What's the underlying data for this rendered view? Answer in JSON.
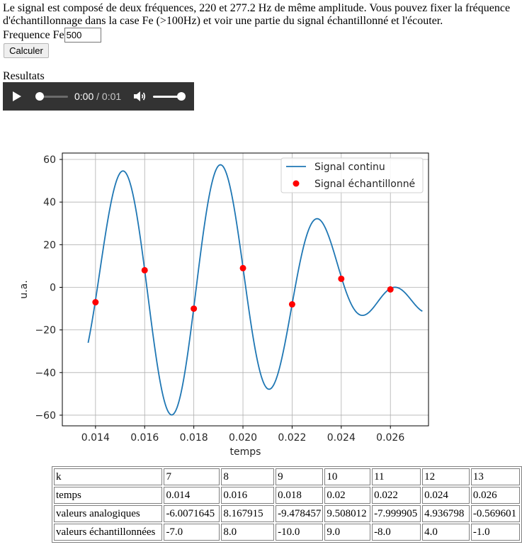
{
  "intro": {
    "text": "Le signal est composé de deux fréquences, 220 et 277.2 Hz de même amplitude. Vous pouvez fixer la fréquence d'échantillonnage dans la case Fe (>100Hz) et voir une partie du signal échantillonné et l'écouter."
  },
  "form": {
    "fe_label": "Frequence Fe",
    "fe_value": "500",
    "calc_label": "Calculer"
  },
  "results": {
    "label": "Resultats"
  },
  "audio": {
    "current_time": "0:00",
    "separator": " / ",
    "duration": "0:01",
    "progress": 0.0,
    "volume": 1.0
  },
  "chart_data": {
    "type": "line",
    "xlabel": "temps",
    "ylabel": "u.a.",
    "xlim": [
      0.01265,
      0.02755
    ],
    "ylim": [
      -65,
      63
    ],
    "xticks": [
      "0.014",
      "0.016",
      "0.018",
      "0.020",
      "0.022",
      "0.024",
      "0.026"
    ],
    "yticks": [
      "60",
      "40",
      "20",
      "0",
      "−20",
      "−40",
      "−60"
    ],
    "xtick_values": [
      0.014,
      0.016,
      0.018,
      0.02,
      0.022,
      0.024,
      0.026
    ],
    "ytick_values": [
      60,
      40,
      20,
      0,
      -20,
      -40,
      -60
    ],
    "grid": true,
    "legend_placement": "upper right",
    "series": [
      {
        "name": "Signal continu",
        "kind": "line",
        "color": "#1f77b4",
        "function": "30*sin(2*pi*220*t)+30*sin(2*pi*277.2*t)",
        "x_range": [
          0.0137,
          0.0273
        ]
      },
      {
        "name": "Signal échantillonné",
        "kind": "scatter",
        "color": "#ff0000",
        "x": [
          0.014,
          0.016,
          0.018,
          0.02,
          0.022,
          0.024,
          0.026
        ],
        "y": [
          -7.0,
          8.0,
          -10.0,
          9.0,
          -8.0,
          4.0,
          -1.0
        ]
      }
    ]
  },
  "table": {
    "rows": [
      {
        "header": "k",
        "cells": [
          "7",
          "8",
          "9",
          "10",
          "11",
          "12",
          "13"
        ]
      },
      {
        "header": "temps",
        "cells": [
          "0.014",
          "0.016",
          "0.018",
          "0.02",
          "0.022",
          "0.024",
          "0.026"
        ]
      },
      {
        "header": "valeurs analogiques",
        "cells": [
          "-6.0071645",
          "8.167915",
          "-9.478457",
          "9.508012",
          "-7.999905",
          "4.936798",
          "-0.569601"
        ]
      },
      {
        "header": "valeurs échantillonnées",
        "cells": [
          "-7.0",
          "8.0",
          "-10.0",
          "9.0",
          "-8.0",
          "4.0",
          "-1.0"
        ]
      }
    ]
  }
}
